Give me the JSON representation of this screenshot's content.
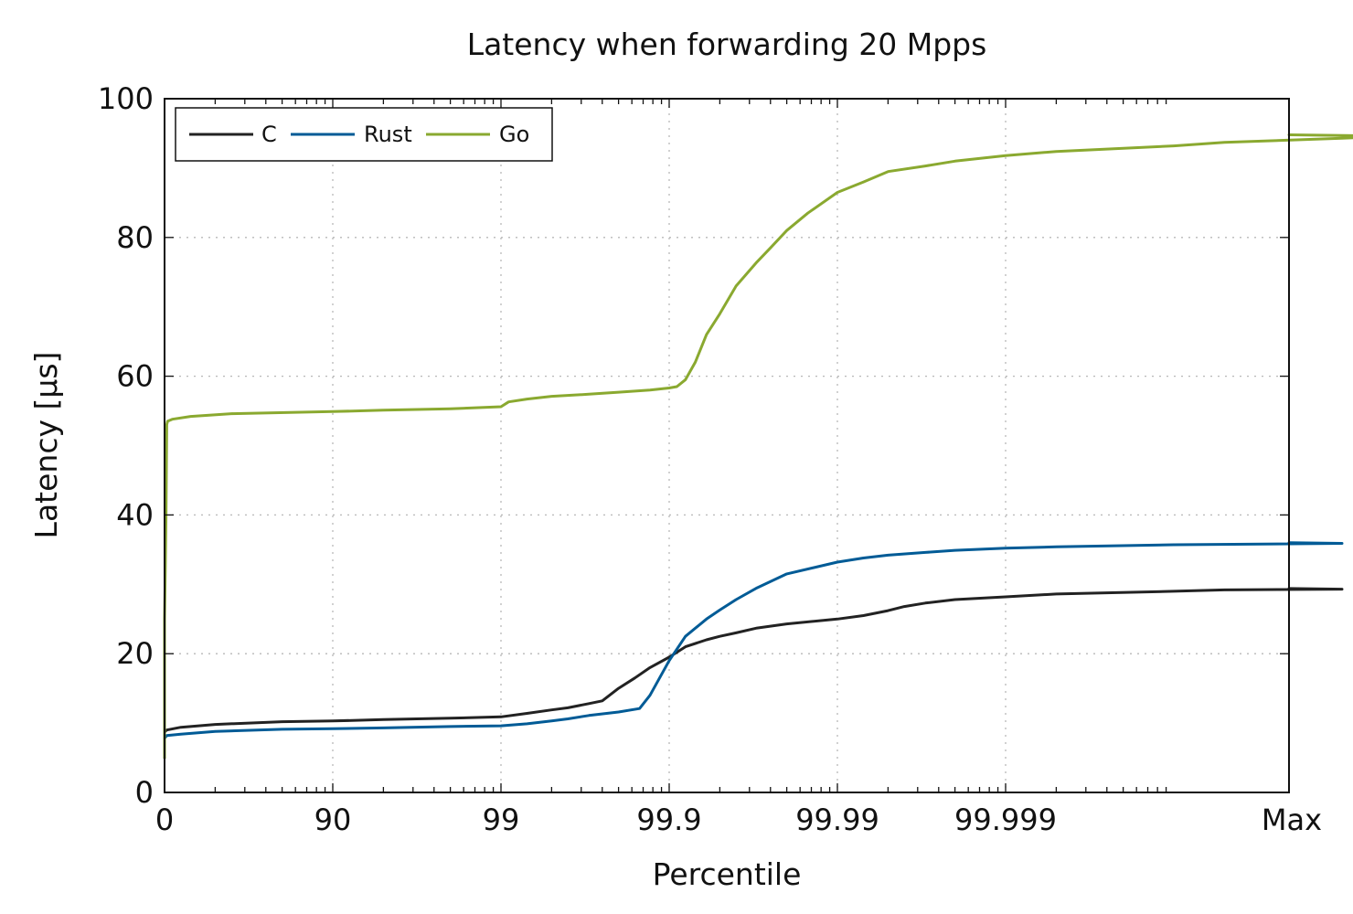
{
  "chart_data": {
    "type": "line",
    "title": "Latency when forwarding 20 Mpps",
    "xlabel": "Percentile",
    "ylabel": "Latency [μs]",
    "x_scale": "inverse-percentile (log of 1 - p)",
    "xlim": [
      0,
      100
    ],
    "ylim": [
      0,
      100
    ],
    "x_ticks": [
      {
        "label": "0",
        "value": 0
      },
      {
        "label": "90",
        "value": 90
      },
      {
        "label": "99",
        "value": 99
      },
      {
        "label": "99.9",
        "value": 99.9
      },
      {
        "label": "99.99",
        "value": 99.99
      },
      {
        "label": "99.999",
        "value": 99.999
      },
      {
        "label": "Max",
        "value": 100
      }
    ],
    "y_ticks": [
      0,
      20,
      40,
      60,
      80,
      100
    ],
    "grid": true,
    "legend_position": "top-left",
    "series": [
      {
        "name": "C",
        "color": "#222222",
        "points": [
          [
            0,
            5
          ],
          [
            0,
            8.7
          ],
          [
            3,
            9.0
          ],
          [
            20,
            9.4
          ],
          [
            50,
            9.8
          ],
          [
            80,
            10.2
          ],
          [
            90,
            10.3
          ],
          [
            95,
            10.5
          ],
          [
            98,
            10.7
          ],
          [
            99,
            10.9
          ],
          [
            99.3,
            11.4
          ],
          [
            99.5,
            11.9
          ],
          [
            99.6,
            12.2
          ],
          [
            99.7,
            12.8
          ],
          [
            99.75,
            13.2
          ],
          [
            99.8,
            15
          ],
          [
            99.84,
            16.5
          ],
          [
            99.87,
            18
          ],
          [
            99.9,
            19.5
          ],
          [
            99.92,
            21
          ],
          [
            99.94,
            22
          ],
          [
            99.95,
            22.5
          ],
          [
            99.96,
            23
          ],
          [
            99.97,
            23.7
          ],
          [
            99.98,
            24.3
          ],
          [
            99.99,
            25
          ],
          [
            99.993,
            25.5
          ],
          [
            99.995,
            26.2
          ],
          [
            99.996,
            26.8
          ],
          [
            99.997,
            27.3
          ],
          [
            99.998,
            27.8
          ],
          [
            99.999,
            28.2
          ],
          [
            99.9995,
            28.6
          ],
          [
            99.9999,
            29.0
          ],
          [
            99.99995,
            29.2
          ],
          [
            99.99999,
            29.3
          ],
          [
            100,
            29.4
          ]
        ]
      },
      {
        "name": "Rust",
        "color": "#005b96",
        "points": [
          [
            0,
            7.8
          ],
          [
            3,
            8.2
          ],
          [
            20,
            8.4
          ],
          [
            50,
            8.8
          ],
          [
            80,
            9.1
          ],
          [
            90,
            9.2
          ],
          [
            95,
            9.3
          ],
          [
            98,
            9.5
          ],
          [
            99,
            9.6
          ],
          [
            99.3,
            9.9
          ],
          [
            99.5,
            10.3
          ],
          [
            99.6,
            10.6
          ],
          [
            99.7,
            11.1
          ],
          [
            99.8,
            11.6
          ],
          [
            99.85,
            12.1
          ],
          [
            99.87,
            14
          ],
          [
            99.9,
            19
          ],
          [
            99.92,
            22.5
          ],
          [
            99.94,
            25
          ],
          [
            99.95,
            26.3
          ],
          [
            99.96,
            27.8
          ],
          [
            99.97,
            29.5
          ],
          [
            99.98,
            31.5
          ],
          [
            99.99,
            33.2
          ],
          [
            99.993,
            33.8
          ],
          [
            99.995,
            34.2
          ],
          [
            99.997,
            34.6
          ],
          [
            99.998,
            34.9
          ],
          [
            99.999,
            35.2
          ],
          [
            99.9995,
            35.4
          ],
          [
            99.9999,
            35.7
          ],
          [
            99.99999,
            35.9
          ],
          [
            100,
            36
          ]
        ]
      },
      {
        "name": "Go",
        "color": "#8aa930",
        "points": [
          [
            0,
            5
          ],
          [
            0,
            25
          ],
          [
            1,
            32
          ],
          [
            2,
            40
          ],
          [
            3,
            53
          ],
          [
            4,
            53.5
          ],
          [
            10,
            53.8
          ],
          [
            30,
            54.2
          ],
          [
            60,
            54.6
          ],
          [
            90,
            54.9
          ],
          [
            95,
            55.1
          ],
          [
            98,
            55.3
          ],
          [
            99,
            55.6
          ],
          [
            99.1,
            56.3
          ],
          [
            99.3,
            56.7
          ],
          [
            99.5,
            57.1
          ],
          [
            99.7,
            57.4
          ],
          [
            99.8,
            57.7
          ],
          [
            99.87,
            58.0
          ],
          [
            99.9,
            58.3
          ],
          [
            99.91,
            58.5
          ],
          [
            99.92,
            59.5
          ],
          [
            99.93,
            62
          ],
          [
            99.94,
            66
          ],
          [
            99.95,
            69
          ],
          [
            99.96,
            73
          ],
          [
            99.97,
            76.5
          ],
          [
            99.975,
            78.5
          ],
          [
            99.98,
            81
          ],
          [
            99.985,
            83.5
          ],
          [
            99.99,
            86.5
          ],
          [
            99.993,
            88
          ],
          [
            99.995,
            89.5
          ],
          [
            99.997,
            90.3
          ],
          [
            99.998,
            91
          ],
          [
            99.999,
            91.8
          ],
          [
            99.9995,
            92.4
          ],
          [
            99.9999,
            93.2
          ],
          [
            99.99995,
            93.7
          ],
          [
            99.99999,
            94.3
          ],
          [
            99.999995,
            94.6
          ],
          [
            100,
            94.8
          ]
        ]
      }
    ]
  }
}
